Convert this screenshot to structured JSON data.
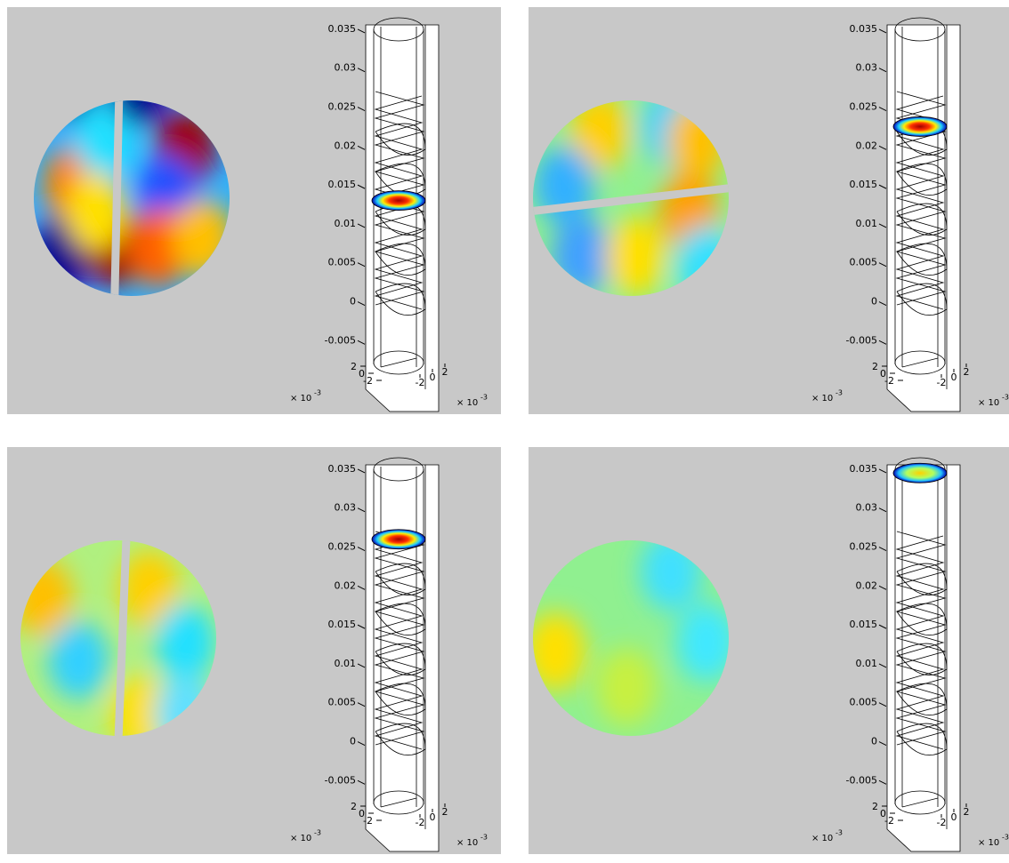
{
  "chart_data": [
    {
      "type": "column-3d",
      "zlim": [
        -0.0085,
        0.0375
      ],
      "zticks": [
        0.035,
        0.03,
        0.025,
        0.02,
        0.015,
        0.01,
        0.005,
        0,
        -0.005
      ],
      "xticks": [
        2,
        0,
        -2
      ],
      "yticks": [
        -2,
        0,
        2
      ],
      "multiplier": "× 10",
      "exponent": "-3",
      "slice_z": 0.013
    },
    {
      "type": "column-3d",
      "zlim": [
        -0.0085,
        0.0375
      ],
      "zticks": [
        0.035,
        0.03,
        0.025,
        0.02,
        0.015,
        0.01,
        0.005,
        0,
        -0.005
      ],
      "xticks": [
        2,
        0,
        -2
      ],
      "yticks": [
        -2,
        0,
        2
      ],
      "multiplier": "× 10",
      "exponent": "-3",
      "slice_z": 0.0225
    },
    {
      "type": "column-3d",
      "zlim": [
        -0.0085,
        0.0375
      ],
      "zticks": [
        0.035,
        0.03,
        0.025,
        0.02,
        0.015,
        0.01,
        0.005,
        0,
        -0.005
      ],
      "xticks": [
        2,
        0,
        -2
      ],
      "yticks": [
        -2,
        0,
        2
      ],
      "multiplier": "× 10",
      "exponent": "-3",
      "slice_z": 0.026
    },
    {
      "type": "column-3d",
      "zlim": [
        -0.0085,
        0.0375
      ],
      "zticks": [
        0.035,
        0.03,
        0.025,
        0.02,
        0.015,
        0.01,
        0.005,
        0,
        -0.005
      ],
      "xticks": [
        2,
        0,
        -2
      ],
      "yticks": [
        -2,
        0,
        2
      ],
      "multiplier": "× 10",
      "exponent": "-3",
      "slice_z": 0.0345
    }
  ]
}
